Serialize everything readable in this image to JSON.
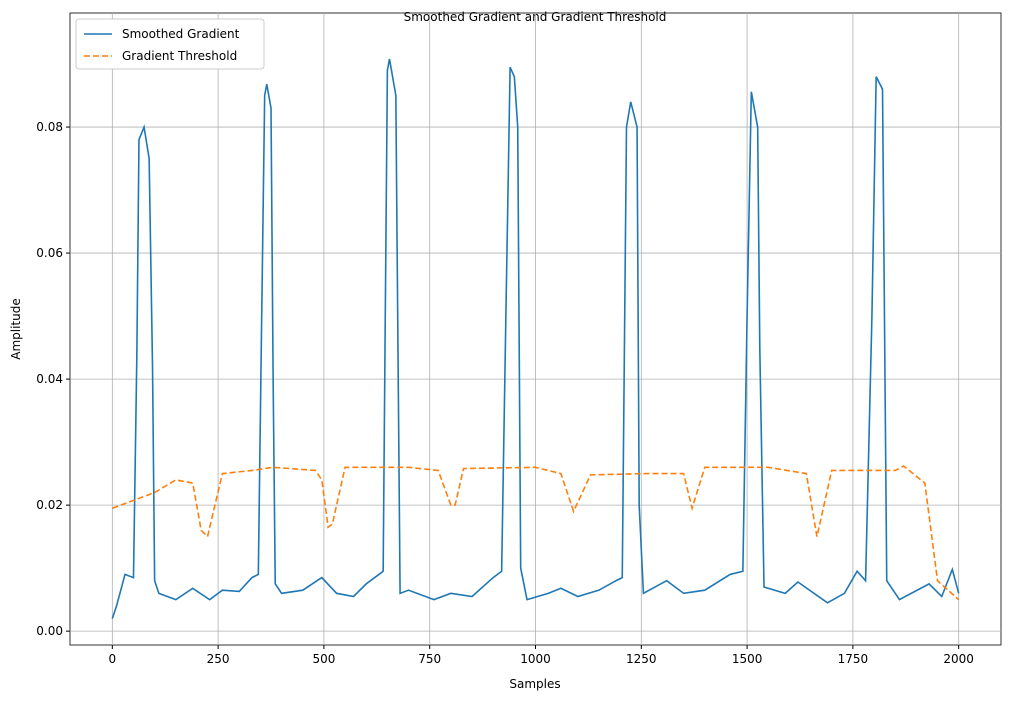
{
  "chart_data": {
    "type": "line",
    "title": "Smoothed Gradient and Gradient Threshold",
    "xlabel": "Samples",
    "ylabel": "Amplitude",
    "xlim": [
      -100,
      2100
    ],
    "ylim": [
      -0.0022,
      0.0981
    ],
    "xticks": [
      0,
      250,
      500,
      750,
      1000,
      1250,
      1500,
      1750,
      2000
    ],
    "yticks": [
      {
        "value": 0,
        "label": "0.00"
      },
      {
        "value": 0.02,
        "label": "0.02"
      },
      {
        "value": 0.04,
        "label": "0.04"
      },
      {
        "value": 0.06,
        "label": "0.06"
      },
      {
        "value": 0.08,
        "label": "0.08"
      }
    ],
    "grid": true,
    "legend": "upper left",
    "series": [
      {
        "name": "Smoothed Gradient",
        "color": "#1f77b4",
        "dash": "solid",
        "x": [
          0,
          10,
          30,
          50,
          58,
          63,
          75,
          87,
          95,
          100,
          110,
          150,
          190,
          230,
          260,
          300,
          330,
          345,
          352,
          360,
          365,
          375,
          380,
          385,
          400,
          450,
          495,
          530,
          570,
          600,
          630,
          640,
          645,
          650,
          655,
          670,
          675,
          680,
          700,
          760,
          800,
          850,
          900,
          920,
          930,
          940,
          950,
          958,
          965,
          980,
          1030,
          1060,
          1100,
          1150,
          1190,
          1205,
          1215,
          1225,
          1240,
          1245,
          1255,
          1310,
          1350,
          1400,
          1460,
          1490,
          1500,
          1510,
          1525,
          1530,
          1540,
          1590,
          1620,
          1690,
          1730,
          1760,
          1780,
          1795,
          1805,
          1820,
          1830,
          1860,
          1930,
          1960,
          1985,
          2000
        ],
        "values": [
          0.002,
          0.004,
          0.009,
          0.0085,
          0.044,
          0.078,
          0.08,
          0.075,
          0.042,
          0.008,
          0.006,
          0.005,
          0.0068,
          0.005,
          0.0065,
          0.0063,
          0.0085,
          0.009,
          0.045,
          0.085,
          0.0868,
          0.083,
          0.04,
          0.0075,
          0.006,
          0.0065,
          0.0085,
          0.006,
          0.0055,
          0.0075,
          0.009,
          0.0095,
          0.05,
          0.089,
          0.0908,
          0.085,
          0.045,
          0.006,
          0.0065,
          0.005,
          0.006,
          0.0055,
          0.0085,
          0.0095,
          0.05,
          0.0895,
          0.088,
          0.08,
          0.01,
          0.005,
          0.006,
          0.0068,
          0.0055,
          0.0065,
          0.008,
          0.0085,
          0.08,
          0.084,
          0.08,
          0.02,
          0.006,
          0.008,
          0.006,
          0.0065,
          0.009,
          0.0095,
          0.05,
          0.0856,
          0.08,
          0.045,
          0.007,
          0.006,
          0.0078,
          0.0045,
          0.006,
          0.0095,
          0.008,
          0.05,
          0.088,
          0.086,
          0.008,
          0.005,
          0.0075,
          0.0055,
          0.0098,
          0.006
        ]
      },
      {
        "name": "Gradient Threshold",
        "color": "#ff7f0e",
        "dash": "dashed",
        "x": [
          0,
          100,
          150,
          190,
          210,
          225,
          260,
          330,
          380,
          480,
          495,
          510,
          520,
          550,
          600,
          700,
          770,
          800,
          810,
          830,
          1000,
          1060,
          1090,
          1130,
          1260,
          1350,
          1370,
          1400,
          1550,
          1640,
          1665,
          1700,
          1850,
          1870,
          1920,
          1950,
          2000
        ],
        "values": [
          0.0195,
          0.022,
          0.024,
          0.0235,
          0.016,
          0.015,
          0.025,
          0.0255,
          0.026,
          0.0255,
          0.024,
          0.0165,
          0.017,
          0.026,
          0.026,
          0.026,
          0.0255,
          0.02,
          0.02,
          0.0258,
          0.026,
          0.025,
          0.019,
          0.0248,
          0.025,
          0.025,
          0.0195,
          0.026,
          0.026,
          0.025,
          0.015,
          0.0255,
          0.0255,
          0.0262,
          0.0235,
          0.008,
          0.005
        ]
      }
    ]
  }
}
